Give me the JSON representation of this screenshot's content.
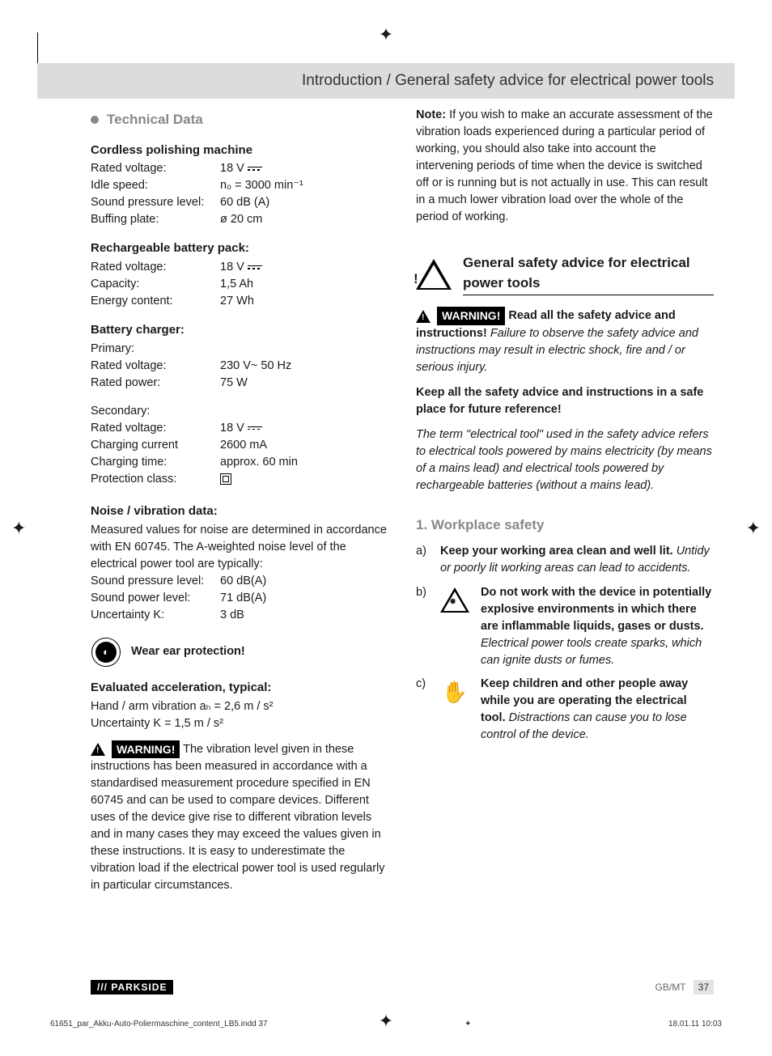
{
  "header": {
    "title": "Introduction / General safety advice for electrical power tools"
  },
  "left": {
    "techDataHeading": "Technical Data",
    "cordless": {
      "heading": "Cordless polishing machine",
      "rows": [
        {
          "label": "Rated voltage:",
          "value": "18 V",
          "dc": true
        },
        {
          "label": "Idle speed:",
          "value": "n₀ = 3000 min⁻¹"
        },
        {
          "label": "Sound pressure level:",
          "value": "60 dB (A)"
        },
        {
          "label": "Buffing plate:",
          "value": "ø 20 cm"
        }
      ]
    },
    "battery": {
      "heading": "Rechargeable battery pack:",
      "rows": [
        {
          "label": "Rated voltage:",
          "value": "18 V",
          "dc": true
        },
        {
          "label": "Capacity:",
          "value": "1,5 Ah"
        },
        {
          "label": "Energy content:",
          "value": "27 Wh"
        }
      ]
    },
    "charger": {
      "heading": "Battery charger:",
      "primaryLabel": "Primary:",
      "primary": [
        {
          "label": "Rated voltage:",
          "value": "230 V~ 50 Hz"
        },
        {
          "label": "Rated power:",
          "value": "75 W"
        }
      ],
      "secondaryLabel": "Secondary:",
      "secondary": [
        {
          "label": "Rated voltage:",
          "value": "18 V",
          "dc": true
        },
        {
          "label": "Charging current",
          "value": "2600 mA"
        },
        {
          "label": "Charging time:",
          "value": "approx. 60 min"
        },
        {
          "label": "Protection class:",
          "value": "",
          "class2": true
        }
      ]
    },
    "noise": {
      "heading": "Noise / vibration data:",
      "intro": "Measured values for noise are determined in accordance with EN 60745. The A-weighted noise level of the electrical power tool are typically:",
      "rows": [
        {
          "label": "Sound pressure level:",
          "value": "60 dB(A)"
        },
        {
          "label": "Sound power level:",
          "value": "71 dB(A)"
        },
        {
          "label": "Uncertainty K:",
          "value": "  3 dB"
        }
      ]
    },
    "earProtection": "Wear ear protection!",
    "accel": {
      "heading": "Evaluated acceleration, typical:",
      "line1": "Hand / arm vibration aₕ = 2,6 m / s²",
      "line2": "Uncertainty K = 1,5 m / s²"
    },
    "warningLabel": "WARNING!",
    "vibPara": " The vibration level given in these instructions has been measured in accordance with a standardised measurement procedure specified in EN 60745 and can be used to compare devices. Different uses of the device give rise to different vibration levels and in many cases they may exceed the values given in these instructions. It is easy to underestimate the vibration load if the electrical power tool is used regularly in particular circumstances."
  },
  "right": {
    "noteLabel": "Note:",
    "notePara": " If you wish to make an accurate assessment of the vibration loads experienced during a particular period of working, you should also take into account the intervening periods of time when the device is switched off or is running but is not actually in use. This can result in a much lower vibration load over the whole of the period of working.",
    "safetyHeading": "General safety advice for electrical power tools",
    "warningLabel": "WARNING!",
    "warnBold": " Read all the safety advice and instructions!",
    "warnItalic": " Failure to observe the safety advice and instructions may result in electric shock, fire and / or serious injury.",
    "keepPara": "Keep all the safety advice and instructions in a safe place for future reference!",
    "termPara": "The term \"electrical tool\" used in the safety advice refers to electrical tools powered by mains electricity (by means of a mains lead) and electrical tools powered by rechargeable batteries (without a mains lead).",
    "workplaceHeading": "1.  Workplace safety",
    "items": [
      {
        "marker": "a)",
        "bold": "Keep your working area clean and well lit.",
        "italic": " Untidy or poorly lit working areas can lead to accidents."
      },
      {
        "marker": "b)",
        "icon": "explosion",
        "bold": "Do not work with the device in potentially explosive environments in which there are inflammable liquids, gases or dusts.",
        "italic": " Electrical power tools create sparks, which can ignite dusts or fumes."
      },
      {
        "marker": "c)",
        "icon": "hand",
        "bold": "Keep children and other people away while you are operating the electrical tool.",
        "italic": " Distractions can cause you to lose control of the device."
      }
    ]
  },
  "footer": {
    "brand": "/// PARKSIDE",
    "region": "GB/MT",
    "page": "37"
  },
  "meta": {
    "file": "61651_par_Akku-Auto-Poliermaschine_content_LB5.indd   37",
    "timestamp": "18.01.11   10:03"
  }
}
